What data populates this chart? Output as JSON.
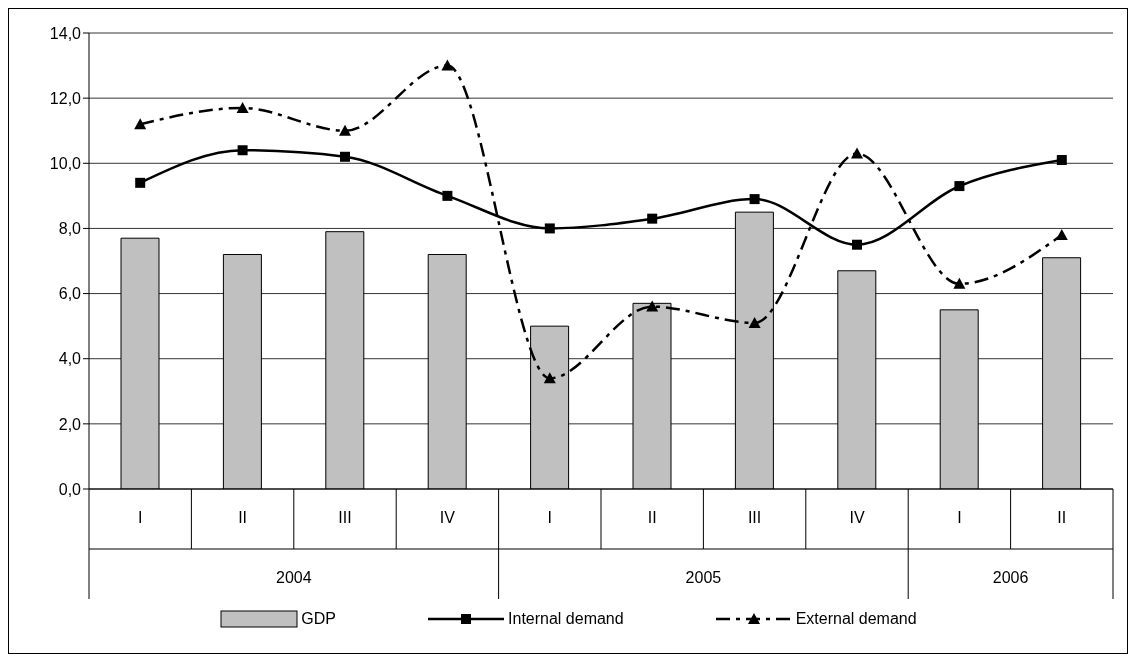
{
  "chart_data": {
    "type": "bar",
    "categories": [
      "I",
      "II",
      "III",
      "IV",
      "I",
      "II",
      "III",
      "IV",
      "I",
      "II"
    ],
    "annotations": [
      "2004",
      "2005",
      "2006"
    ],
    "series": [
      {
        "name": "GDP",
        "color": "#c0c0c0",
        "values": [
          7.7,
          7.2,
          7.9,
          7.2,
          5.0,
          5.7,
          8.5,
          6.7,
          5.5,
          7.1
        ]
      },
      {
        "name": "Internal demand",
        "type": "line",
        "color": "#000000",
        "marker": "square",
        "line_style": "solid",
        "values": [
          9.4,
          10.4,
          10.2,
          9.0,
          8.0,
          8.3,
          8.9,
          7.5,
          9.3,
          10.1
        ]
      },
      {
        "name": "External demand",
        "type": "line",
        "color": "#000000",
        "marker": "triangle",
        "line_style": "dashed",
        "values": [
          11.2,
          11.7,
          11.0,
          13.0,
          3.4,
          5.6,
          5.1,
          10.3,
          6.3,
          7.8
        ]
      }
    ],
    "ylim": [
      0,
      14
    ],
    "yticks": [
      {
        "value": 0,
        "label": "0,0"
      },
      {
        "value": 2,
        "label": "2,0"
      },
      {
        "value": 4,
        "label": "4,0"
      },
      {
        "value": 6,
        "label": "6,0"
      },
      {
        "value": 8,
        "label": "8,0"
      },
      {
        "value": 10,
        "label": "10,0"
      },
      {
        "value": 12,
        "label": "12,0"
      },
      {
        "value": 14,
        "label": "14,0"
      }
    ],
    "grid": "y",
    "legend": "bottom"
  }
}
